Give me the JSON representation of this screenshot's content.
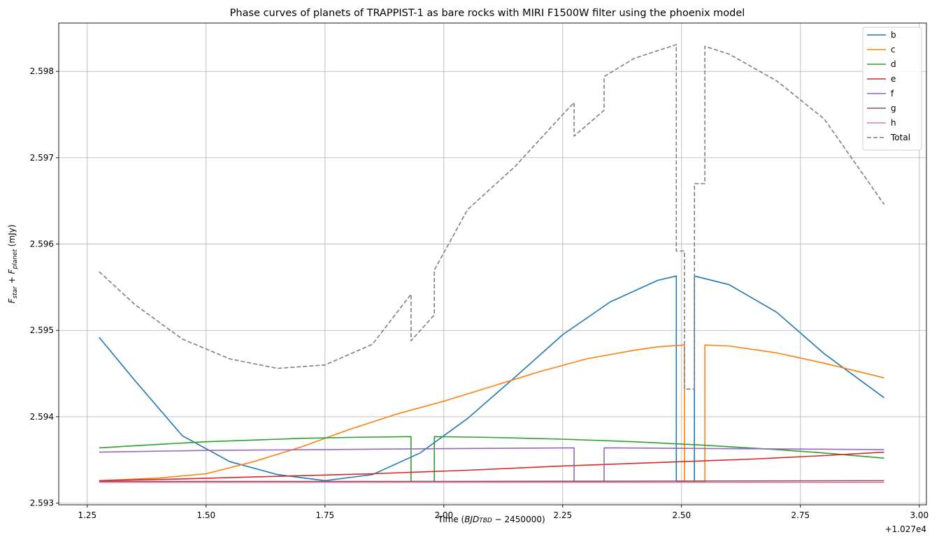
{
  "chart_data": {
    "type": "line",
    "title": "Phase curves of planets of TRAPPIST-1 as bare rocks with MIRI F1500W filter using the phoenix model",
    "xlabel_main": "Time (",
    "xlabel_sym": "BJD",
    "xlabel_sub": "TBD",
    "xlabel_tail": " − 2450000)",
    "ylabel_F1": "F",
    "ylabel_sub1": "star",
    "ylabel_plus": " + ",
    "ylabel_F2": "F",
    "ylabel_sub2": "planet",
    "ylabel_unit": " (mJy)",
    "x_offset_label": "+1.027e4",
    "xlim": [
      1.19,
      3.015
    ],
    "ylim": [
      2.59298,
      2.59856
    ],
    "xticks": [
      1.25,
      1.5,
      1.75,
      2.0,
      2.25,
      2.5,
      2.75,
      3.0
    ],
    "xtick_labels": [
      "1.25",
      "1.50",
      "1.75",
      "2.00",
      "2.25",
      "2.50",
      "2.75",
      "3.00"
    ],
    "yticks": [
      2.593,
      2.594,
      2.595,
      2.596,
      2.597,
      2.598
    ],
    "ytick_labels": [
      "2.593",
      "2.594",
      "2.595",
      "2.596",
      "2.597",
      "2.598"
    ],
    "grid": true,
    "legend_position": "top-right",
    "series": [
      {
        "name": "b",
        "color": "#1f77b4",
        "dash": false,
        "points": [
          [
            1.275,
            2.59492
          ],
          [
            1.35,
            2.59442
          ],
          [
            1.45,
            2.59378
          ],
          [
            1.55,
            2.59348
          ],
          [
            1.65,
            2.59333
          ],
          [
            1.75,
            2.59326
          ],
          [
            1.85,
            2.59333
          ],
          [
            1.95,
            2.59358
          ],
          [
            2.05,
            2.59398
          ],
          [
            2.15,
            2.59446
          ],
          [
            2.25,
            2.59495
          ],
          [
            2.35,
            2.59533
          ],
          [
            2.45,
            2.59558
          ],
          [
            2.489,
            2.59563
          ],
          [
            2.489,
            2.59325
          ],
          [
            2.527,
            2.59325
          ],
          [
            2.527,
            2.59563
          ],
          [
            2.6,
            2.59553
          ],
          [
            2.7,
            2.59521
          ],
          [
            2.8,
            2.59473
          ],
          [
            2.926,
            2.59422
          ]
        ]
      },
      {
        "name": "c",
        "color": "#ff7f0e",
        "dash": false,
        "points": [
          [
            1.275,
            2.59326
          ],
          [
            1.4,
            2.59329
          ],
          [
            1.5,
            2.59334
          ],
          [
            1.6,
            2.59348
          ],
          [
            1.7,
            2.59365
          ],
          [
            1.8,
            2.59385
          ],
          [
            1.9,
            2.59403
          ],
          [
            2.0,
            2.59418
          ],
          [
            2.1,
            2.59435
          ],
          [
            2.2,
            2.59452
          ],
          [
            2.3,
            2.59467
          ],
          [
            2.4,
            2.59477
          ],
          [
            2.45,
            2.59481
          ],
          [
            2.506,
            2.59483
          ],
          [
            2.506,
            2.59325
          ],
          [
            2.549,
            2.59325
          ],
          [
            2.549,
            2.59483
          ],
          [
            2.6,
            2.59482
          ],
          [
            2.7,
            2.59474
          ],
          [
            2.8,
            2.59462
          ],
          [
            2.926,
            2.59445
          ]
        ]
      },
      {
        "name": "d",
        "color": "#2ca02c",
        "dash": false,
        "points": [
          [
            1.275,
            2.59364
          ],
          [
            1.4,
            2.59368
          ],
          [
            1.5,
            2.59371
          ],
          [
            1.6,
            2.59373
          ],
          [
            1.7,
            2.59375
          ],
          [
            1.8,
            2.59376
          ],
          [
            1.931,
            2.59377
          ],
          [
            1.931,
            2.59325
          ],
          [
            1.98,
            2.59325
          ],
          [
            1.98,
            2.59377
          ],
          [
            2.1,
            2.59376
          ],
          [
            2.25,
            2.59374
          ],
          [
            2.4,
            2.59371
          ],
          [
            2.55,
            2.59367
          ],
          [
            2.7,
            2.59362
          ],
          [
            2.8,
            2.59358
          ],
          [
            2.926,
            2.59352
          ]
        ]
      },
      {
        "name": "e",
        "color": "#d62728",
        "dash": false,
        "points": [
          [
            1.275,
            2.59326
          ],
          [
            1.45,
            2.59328
          ],
          [
            1.65,
            2.59331
          ],
          [
            1.85,
            2.59334
          ],
          [
            2.05,
            2.59338
          ],
          [
            2.25,
            2.59343
          ],
          [
            2.45,
            2.59347
          ],
          [
            2.65,
            2.59351
          ],
          [
            2.8,
            2.59355
          ],
          [
            2.926,
            2.59359
          ]
        ]
      },
      {
        "name": "f",
        "color": "#9467bd",
        "dash": false,
        "points": [
          [
            1.275,
            2.59359
          ],
          [
            1.5,
            2.59361
          ],
          [
            1.75,
            2.59362
          ],
          [
            2.0,
            2.59363
          ],
          [
            2.274,
            2.59364
          ],
          [
            2.274,
            2.59325
          ],
          [
            2.337,
            2.59325
          ],
          [
            2.337,
            2.59364
          ],
          [
            2.6,
            2.59363
          ],
          [
            2.926,
            2.59362
          ]
        ]
      },
      {
        "name": "g",
        "color": "#8c564b",
        "dash": false,
        "points": [
          [
            1.275,
            2.59325
          ],
          [
            2.0,
            2.59325
          ],
          [
            2.926,
            2.59326
          ]
        ]
      },
      {
        "name": "h",
        "color": "#e377c2",
        "dash": false,
        "points": [
          [
            1.275,
            2.59324
          ],
          [
            2.0,
            2.59324
          ],
          [
            2.926,
            2.59324
          ]
        ]
      },
      {
        "name": "Total",
        "color": "#7f7f7f",
        "dash": true,
        "points": [
          [
            1.275,
            2.59568
          ],
          [
            1.35,
            2.5953
          ],
          [
            1.45,
            2.5949
          ],
          [
            1.55,
            2.59467
          ],
          [
            1.65,
            2.59456
          ],
          [
            1.75,
            2.5946
          ],
          [
            1.85,
            2.59484
          ],
          [
            1.931,
            2.59542
          ],
          [
            1.931,
            2.59488
          ],
          [
            1.98,
            2.59518
          ],
          [
            1.98,
            2.5957
          ],
          [
            2.05,
            2.5964
          ],
          [
            2.15,
            2.5969
          ],
          [
            2.25,
            2.5975
          ],
          [
            2.274,
            2.59764
          ],
          [
            2.274,
            2.59725
          ],
          [
            2.337,
            2.59755
          ],
          [
            2.337,
            2.59794
          ],
          [
            2.4,
            2.59815
          ],
          [
            2.489,
            2.59831
          ],
          [
            2.489,
            2.59592
          ],
          [
            2.506,
            2.59592
          ],
          [
            2.506,
            2.59432
          ],
          [
            2.527,
            2.59432
          ],
          [
            2.527,
            2.5967
          ],
          [
            2.549,
            2.5967
          ],
          [
            2.549,
            2.59829
          ],
          [
            2.6,
            2.5982
          ],
          [
            2.7,
            2.59789
          ],
          [
            2.8,
            2.59745
          ],
          [
            2.926,
            2.59646
          ]
        ]
      }
    ]
  }
}
